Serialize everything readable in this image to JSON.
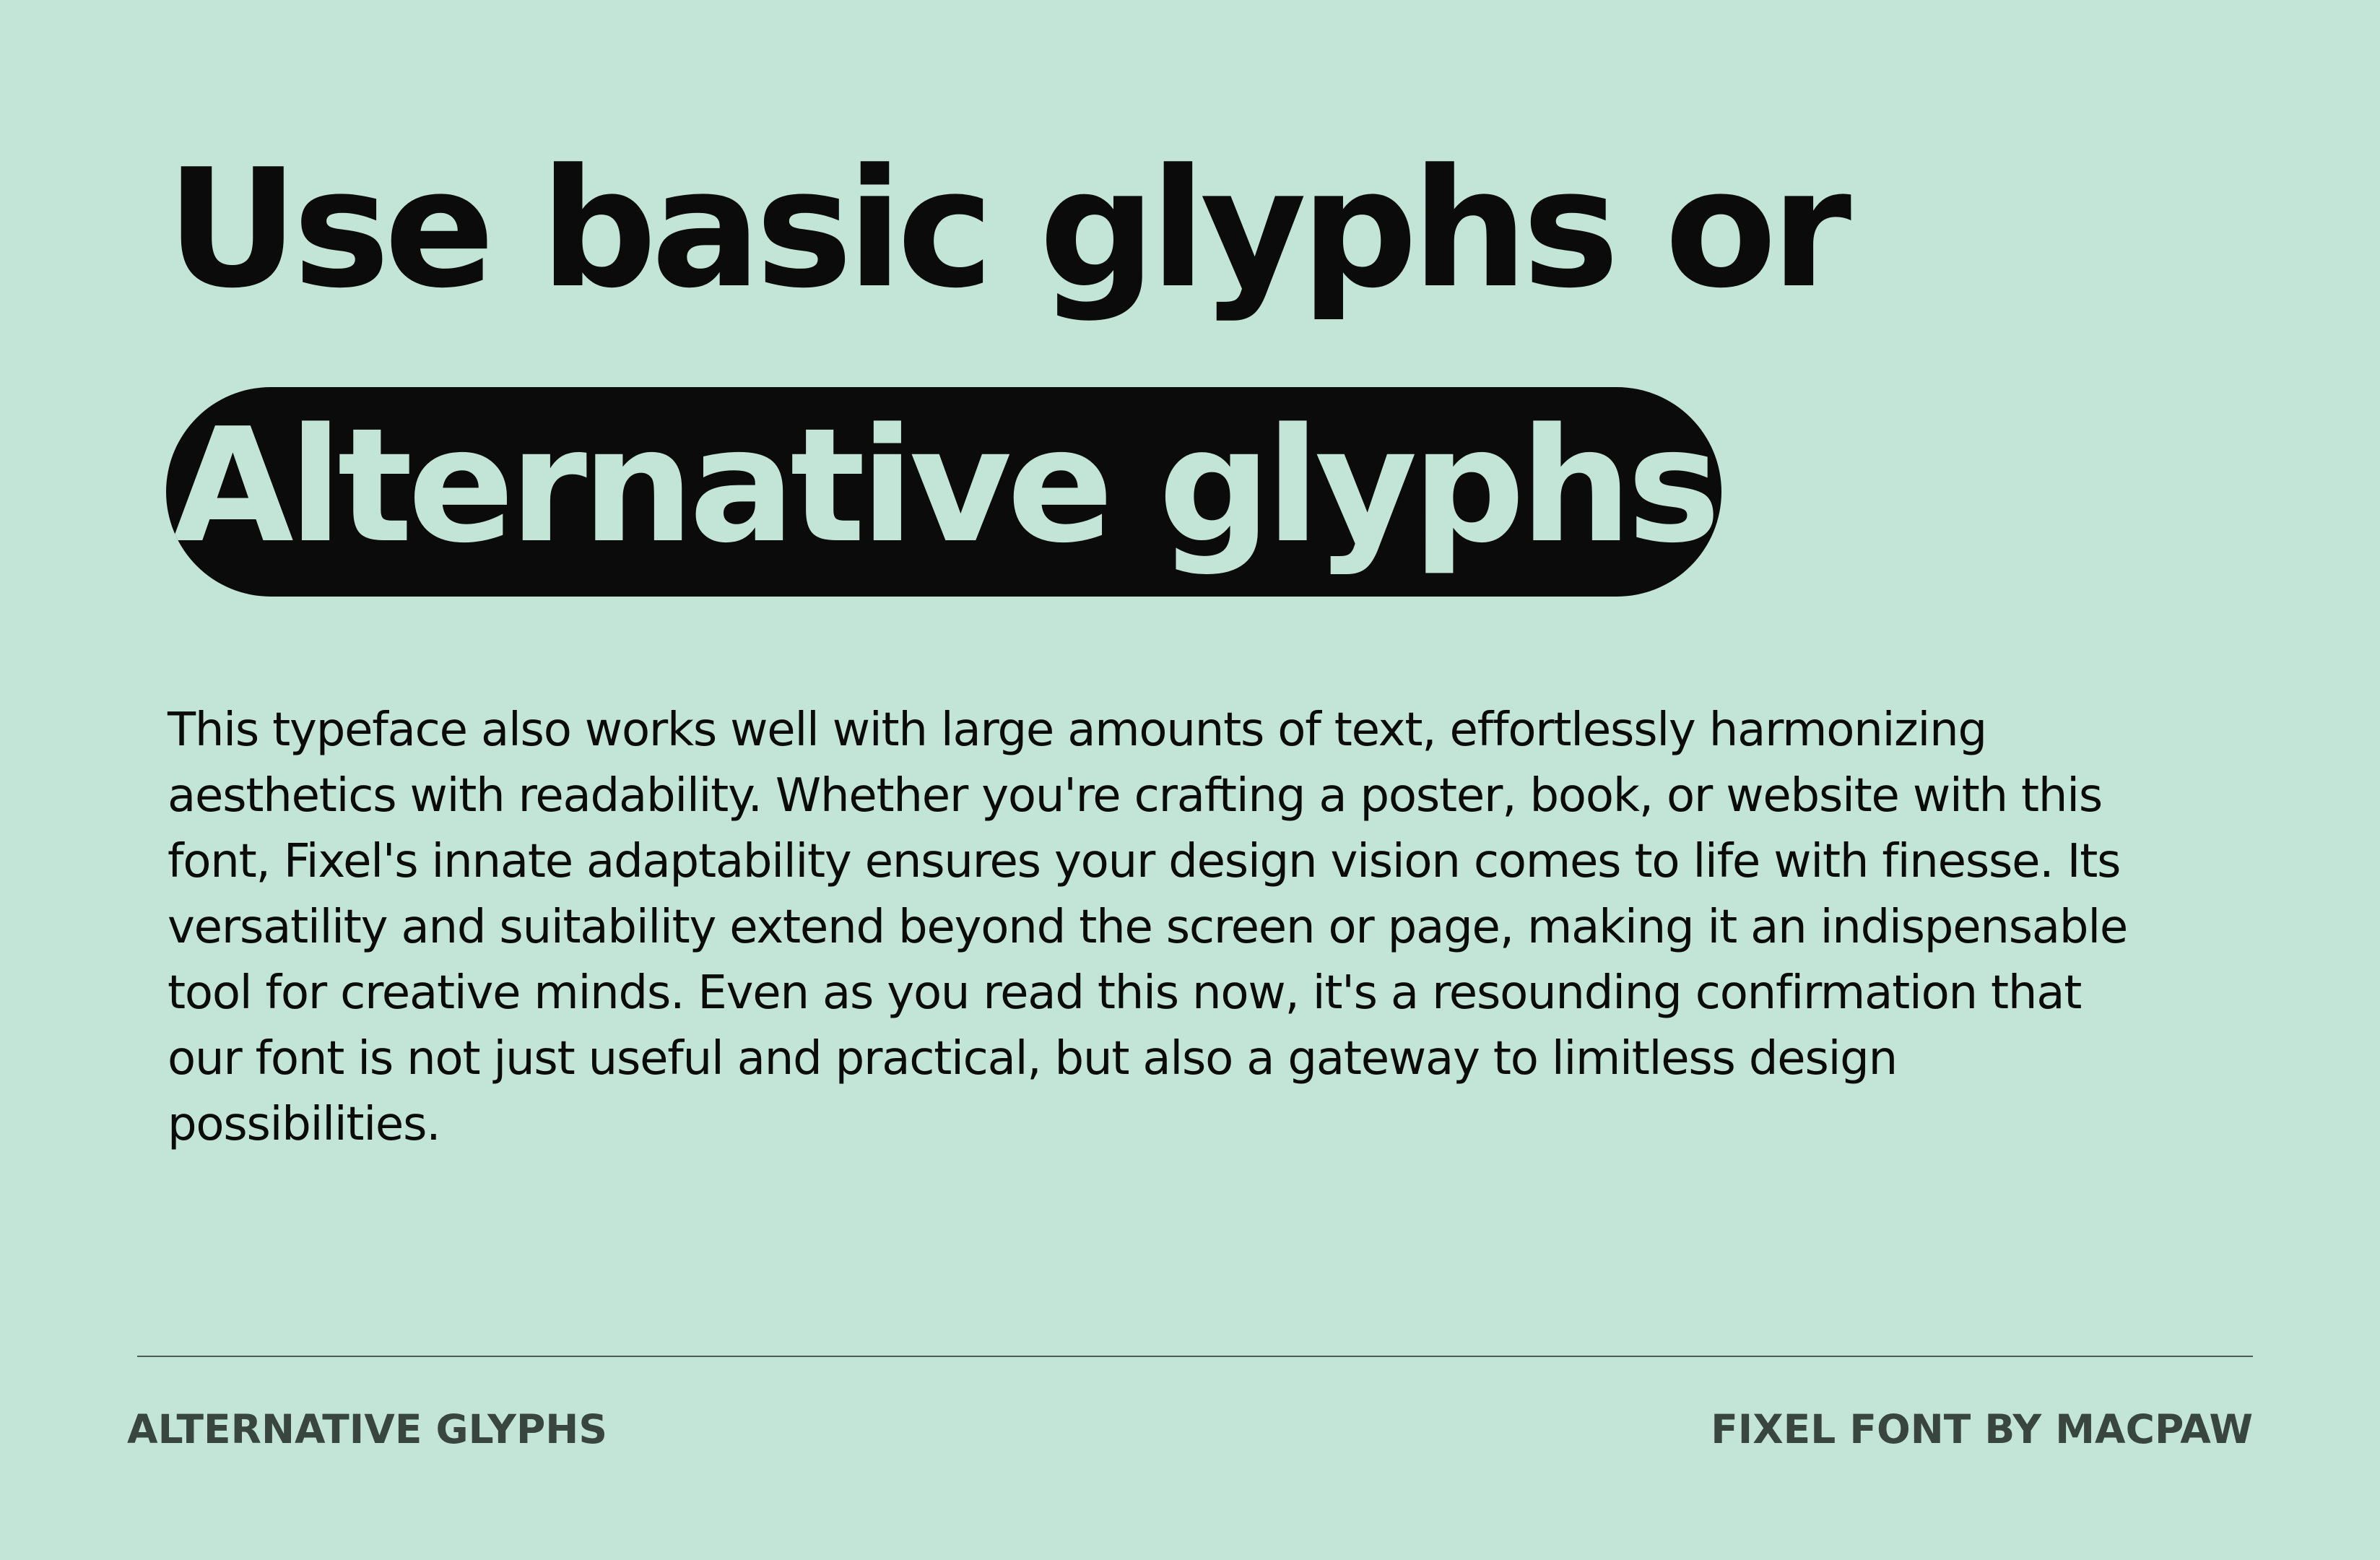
{
  "headline": "Use basic glyphs or",
  "highlight": "Alternative glyphs",
  "body_text": "This typeface also works well with large amounts of text, effortlessly harmonizing aesthetics with readability. Whether you're crafting a poster, book, or website with this font, Fixel's innate adaptability ensures your design vision comes to life with finesse. Its versatility and suitability extend beyond the screen or page, making it an indispensable tool for creative minds. Even as you read this now, it's a resounding confirmation that our font is not just useful and practical, but also a gateway to limitless design possibilities.",
  "footer": {
    "left": "ALTERNATIVE GLYPHS",
    "right": "FIXEL FONT BY MACPAW"
  },
  "colors": {
    "background": "#c3e5d7",
    "text": "#0b0b0b",
    "footer_text": "#39453f"
  }
}
